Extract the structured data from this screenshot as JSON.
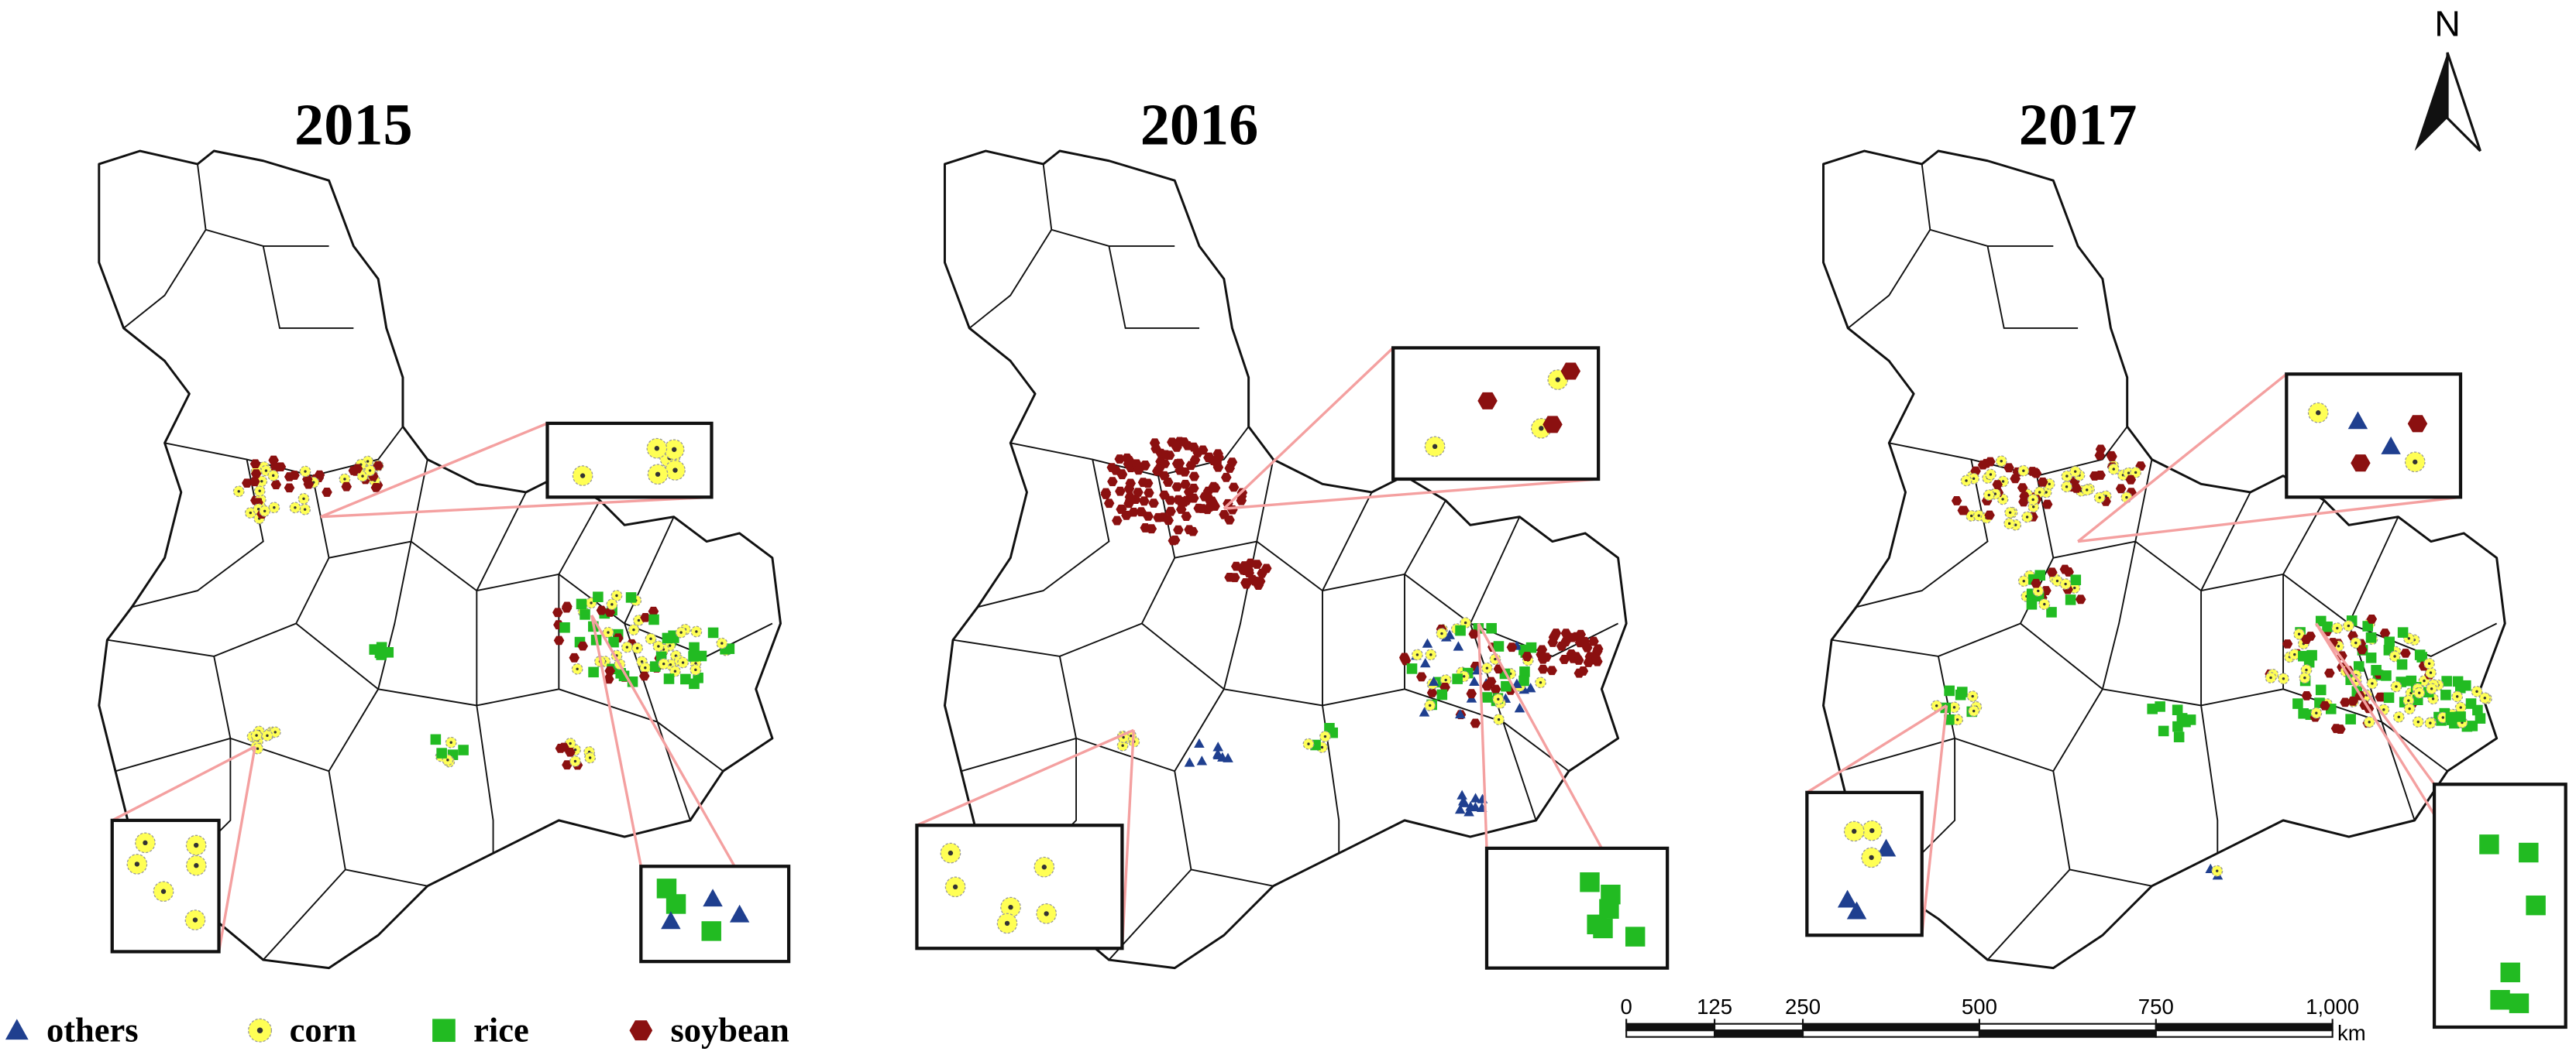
{
  "titles": [
    "2015",
    "2016",
    "2017"
  ],
  "north": "N",
  "legend": [
    {
      "symbol": "triangle",
      "label": "others",
      "color": "#1f3f8f"
    },
    {
      "symbol": "circle",
      "label": "corn",
      "color": "#ffff55"
    },
    {
      "symbol": "square",
      "label": "rice",
      "color": "#22bb22"
    },
    {
      "symbol": "hexagon",
      "label": "soybean",
      "color": "#8b1010"
    }
  ],
  "scale_bar": {
    "ticks": [
      0,
      125,
      250,
      500,
      750,
      {
        "value": 1000,
        "label": "1,000"
      }
    ],
    "unit": "km"
  }
}
